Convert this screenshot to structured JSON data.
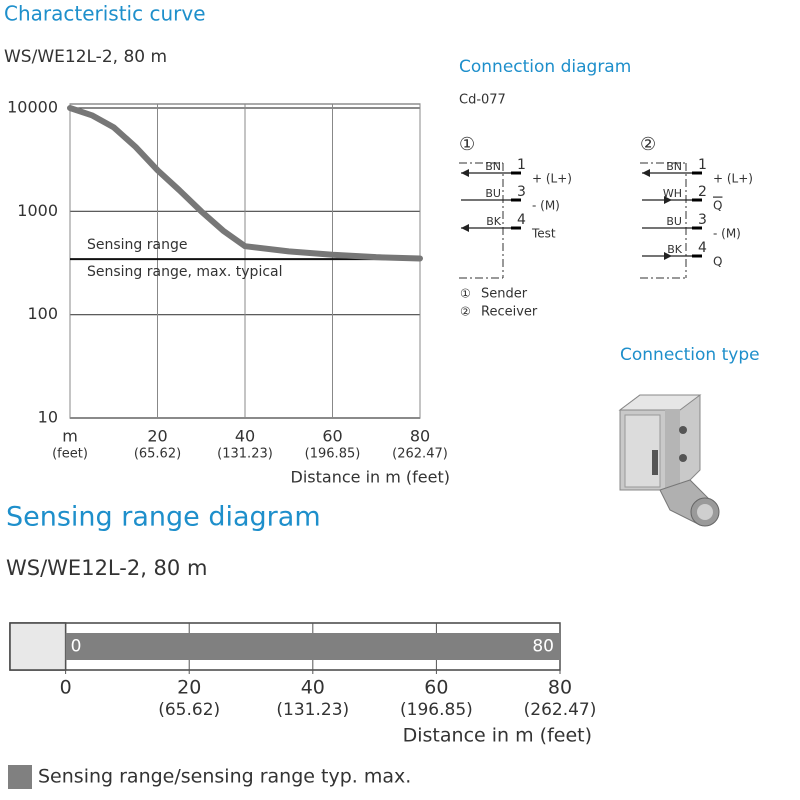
{
  "chart_data": [
    {
      "type": "line",
      "title": "Characteristic curve",
      "subtitle": "WS/WE12L-2, 80 m",
      "x_label": "Distance in m (feet)",
      "x": [
        0,
        5,
        10,
        15,
        20,
        25,
        30,
        35,
        40,
        50,
        60,
        70,
        80
      ],
      "series": [
        {
          "color": "#777777",
          "values": [
            10000,
            8500,
            6500,
            4200,
            2500,
            1600,
            1000,
            650,
            460,
            410,
            380,
            360,
            350
          ]
        }
      ],
      "log_y": true,
      "xlim": [
        0,
        80
      ],
      "ylim": [
        10,
        10000
      ],
      "xticks": [
        {
          "value": 0,
          "label": "m"
        },
        20,
        40,
        60,
        80
      ],
      "xtick_sublabels": [
        "(feet)",
        "(65.62)",
        "(131.23)",
        "(196.85)",
        "(262.47)"
      ],
      "yticks": [
        10,
        100,
        1000,
        10000
      ],
      "grid": true,
      "annotation": "Sensing range",
      "reference_line": {
        "value": 345,
        "label": "Sensing range, max. typical"
      }
    },
    {
      "type": "range_bar",
      "title": "Sensing range diagram",
      "subtitle": "WS/WE12L-2, 80 m",
      "x_label": "Distance in m (feet)",
      "range": [
        0,
        80
      ],
      "color": "#808080",
      "xlim": [
        -9,
        80
      ],
      "xticks": [
        0,
        20,
        40,
        60,
        80
      ],
      "xtick_sublabels": [
        null,
        "(65.62)",
        "(131.23)",
        "(196.85)",
        "(262.47)"
      ],
      "legend": "Sensing range/sensing range typ. max."
    }
  ],
  "connection_diagram": {
    "title": "Connection diagram",
    "code": "Cd-077",
    "parts": [
      {
        "symbol": "①",
        "rows": [
          {
            "wire": "BN",
            "pin": "1",
            "signal": "+ (L+)",
            "arrow": "left"
          },
          {
            "wire": "BU",
            "pin": "3",
            "signal": "- (M)",
            "arrow": "none"
          },
          {
            "wire": "BK",
            "pin": "4",
            "signal": "Test",
            "arrow": "left"
          }
        ]
      },
      {
        "symbol": "②",
        "rows": [
          {
            "wire": "BN",
            "pin": "1",
            "signal": "+ (L+)",
            "arrow": "left"
          },
          {
            "wire": "WH",
            "pin": "2",
            "signal": "Q",
            "overline": true,
            "arrow": "right"
          },
          {
            "wire": "BU",
            "pin": "3",
            "signal": "- (M)",
            "arrow": "none"
          },
          {
            "wire": "BK",
            "pin": "4",
            "signal": "Q",
            "arrow": "right"
          }
        ]
      }
    ],
    "legend": [
      {
        "symbol": "①",
        "text": "Sender"
      },
      {
        "symbol": "②",
        "text": "Receiver"
      }
    ]
  },
  "connection_type": {
    "title": "Connection type"
  }
}
